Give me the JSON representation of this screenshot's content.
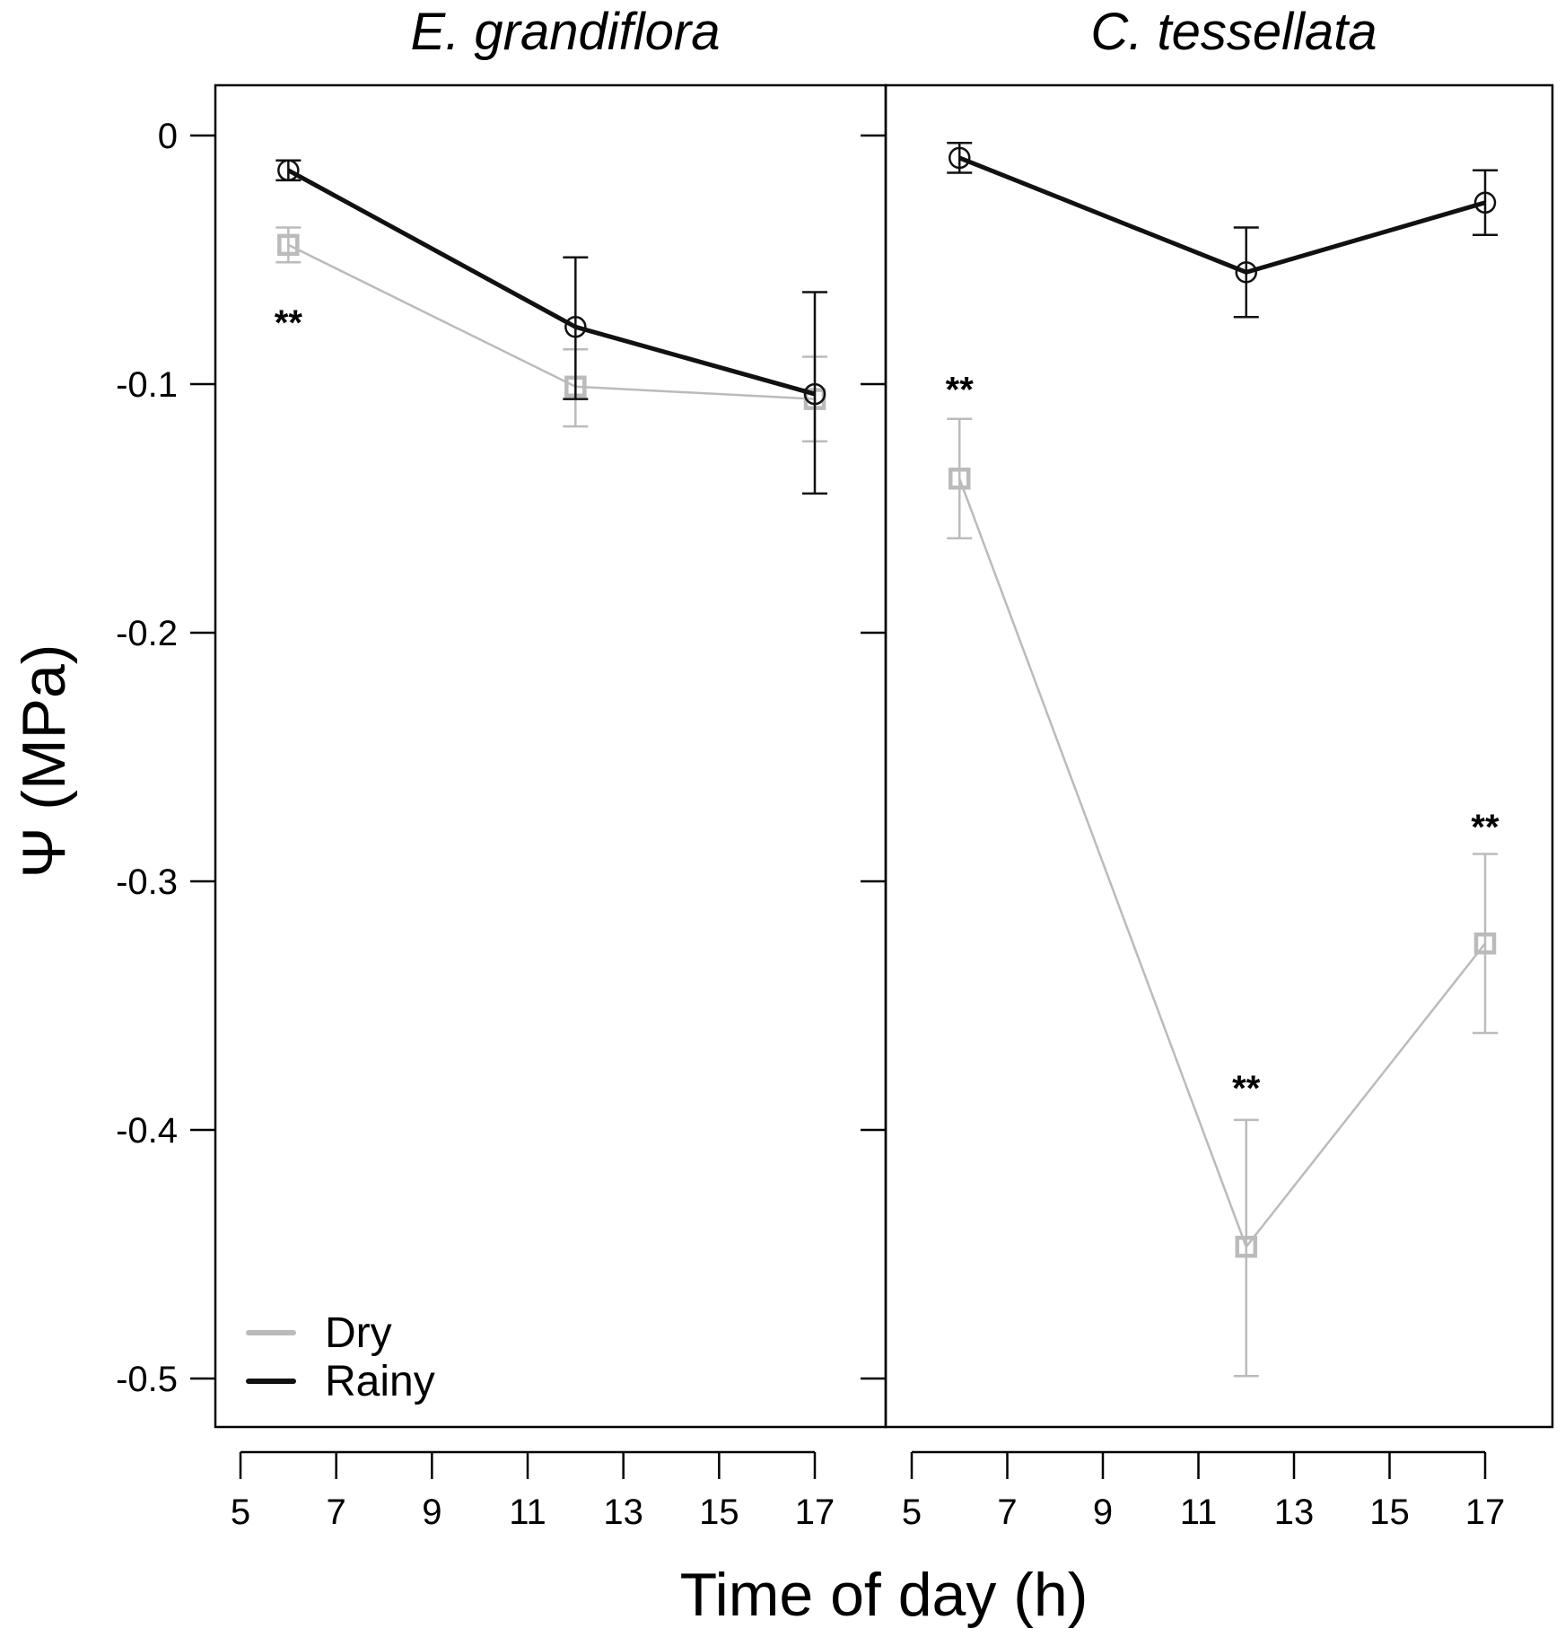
{
  "chart_data": {
    "type": "line",
    "ylabel": "Ψ (MPa)",
    "xlabel": "Time of day (h)",
    "ylim": [
      -0.52,
      0.02
    ],
    "yticks": [
      0,
      -0.1,
      -0.2,
      -0.3,
      -0.4,
      -0.5
    ],
    "ytick_labels": [
      "0",
      "-0.1",
      "-0.2",
      "-0.3",
      "-0.4",
      "-0.5"
    ],
    "xlim": [
      4.5,
      18.4
    ],
    "xticks": [
      5,
      7,
      9,
      11,
      13,
      15,
      17
    ],
    "xtick_labels": [
      "5",
      "7",
      "9",
      "11",
      "13",
      "15",
      "17"
    ],
    "legend": {
      "position": "bottom-left",
      "entries": [
        {
          "name": "Dry",
          "color": "#bbbbbb"
        },
        {
          "name": "Rainy",
          "color": "#111111"
        }
      ]
    },
    "panels": [
      {
        "title": "E. grandiflora",
        "series": [
          {
            "name": "Dry",
            "color": "#bbbbbb",
            "marker": "square",
            "x": [
              6,
              12,
              17
            ],
            "y": [
              -0.044,
              -0.101,
              -0.106
            ],
            "err_low": [
              -0.051,
              -0.117,
              -0.123
            ],
            "err_high": [
              -0.037,
              -0.086,
              -0.089
            ]
          },
          {
            "name": "Rainy",
            "color": "#111111",
            "marker": "circle",
            "x": [
              6,
              12,
              17
            ],
            "y": [
              -0.014,
              -0.077,
              -0.104
            ],
            "err_low": [
              -0.018,
              -0.106,
              -0.144
            ],
            "err_high": [
              -0.01,
              -0.049,
              -0.063
            ]
          }
        ],
        "annotations": [
          {
            "text": "**",
            "x": 6,
            "y": -0.075
          }
        ]
      },
      {
        "title": "C. tessellata",
        "series": [
          {
            "name": "Dry",
            "color": "#bbbbbb",
            "marker": "square",
            "x": [
              6,
              12,
              17
            ],
            "y": [
              -0.138,
              -0.447,
              -0.325
            ],
            "err_low": [
              -0.162,
              -0.499,
              -0.361
            ],
            "err_high": [
              -0.114,
              -0.396,
              -0.289
            ]
          },
          {
            "name": "Rainy",
            "color": "#111111",
            "marker": "circle",
            "x": [
              6,
              12,
              17
            ],
            "y": [
              -0.009,
              -0.055,
              -0.027
            ],
            "err_low": [
              -0.015,
              -0.073,
              -0.04
            ],
            "err_high": [
              -0.003,
              -0.037,
              -0.014
            ]
          }
        ],
        "annotations": [
          {
            "text": "**",
            "x": 6,
            "y": -0.102
          },
          {
            "text": "**",
            "x": 12,
            "y": -0.383
          },
          {
            "text": "**",
            "x": 17,
            "y": -0.278
          }
        ]
      }
    ]
  }
}
